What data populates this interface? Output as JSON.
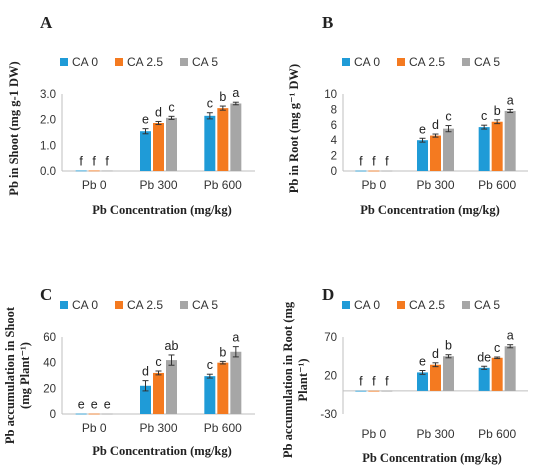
{
  "colors": {
    "CA 0": "#1f9bd7",
    "CA 2.5": "#f47a20",
    "CA 5": "#a6a6a6",
    "axis": "#bfbfbf",
    "text": "#333333"
  },
  "chart_data": [
    {
      "panel": "A",
      "type": "bar",
      "xlabel": "Pb Concentration (mg/kg)",
      "ylabel": "Pb in Shoot (mg g-1 DW)",
      "categories": [
        "Pb 0",
        "Pb 300",
        "Pb 600"
      ],
      "ylim": [
        0,
        3
      ],
      "yticks": [
        "0.0",
        "1.0",
        "2.0",
        "3.0"
      ],
      "legend": [
        "CA 0",
        "CA 2.5",
        "CA 5"
      ],
      "series": [
        {
          "name": "CA 0",
          "values": [
            0.02,
            1.55,
            2.15
          ],
          "errors": [
            0.0,
            0.1,
            0.12
          ],
          "labels": [
            "f",
            "e",
            "c"
          ]
        },
        {
          "name": "CA 2.5",
          "values": [
            0.02,
            1.87,
            2.45
          ],
          "errors": [
            0.0,
            0.06,
            0.08
          ],
          "labels": [
            "f",
            "d",
            "b"
          ]
        },
        {
          "name": "CA 5",
          "values": [
            0.02,
            2.07,
            2.63
          ],
          "errors": [
            0.0,
            0.06,
            0.05
          ],
          "labels": [
            "f",
            "c",
            "a"
          ]
        }
      ]
    },
    {
      "panel": "B",
      "type": "bar",
      "xlabel": "Pb Concentration (mg/kg)",
      "ylabel": "Pb in Root (mg g⁻¹ DW)",
      "categories": [
        "Pb 0",
        "Pb 300",
        "Pb 600"
      ],
      "ylim": [
        0,
        10
      ],
      "yticks": [
        "0",
        "2",
        "4",
        "6",
        "8",
        "10"
      ],
      "legend": [
        "CA 0",
        "CA 2.5",
        "CA 5"
      ],
      "series": [
        {
          "name": "CA 0",
          "values": [
            0.05,
            4.0,
            5.7
          ],
          "errors": [
            0.0,
            0.25,
            0.25
          ],
          "labels": [
            "f",
            "e",
            "c"
          ]
        },
        {
          "name": "CA 2.5",
          "values": [
            0.05,
            4.6,
            6.4
          ],
          "errors": [
            0.0,
            0.2,
            0.25
          ],
          "labels": [
            "f",
            "d",
            "b"
          ]
        },
        {
          "name": "CA 5",
          "values": [
            0.05,
            5.5,
            7.8
          ],
          "errors": [
            0.0,
            0.4,
            0.2
          ],
          "labels": [
            "f",
            "c",
            "a"
          ]
        }
      ]
    },
    {
      "panel": "C",
      "type": "bar",
      "xlabel": "Pb Concentration (mg/kg)",
      "ylabel_lines": [
        "Pb accumulation in Shoot",
        "(mg Plant⁻¹)"
      ],
      "categories": [
        "Pb 0",
        "Pb 300",
        "Pb 600"
      ],
      "ylim": [
        0,
        60
      ],
      "yticks": [
        "0",
        "20",
        "40",
        "60"
      ],
      "legend": [
        "CA 0",
        "CA 2.5",
        "CA 5"
      ],
      "series": [
        {
          "name": "CA 0",
          "values": [
            0.3,
            22,
            29.5
          ],
          "errors": [
            0.0,
            4,
            1.5
          ],
          "labels": [
            "e",
            "d",
            "c"
          ]
        },
        {
          "name": "CA 2.5",
          "values": [
            0.3,
            32,
            40
          ],
          "errors": [
            0.0,
            1.5,
            1
          ],
          "labels": [
            "e",
            "c",
            "b"
          ]
        },
        {
          "name": "CA 5",
          "values": [
            0.3,
            42,
            48.5
          ],
          "errors": [
            0.0,
            4,
            4
          ],
          "labels": [
            "e",
            "ab",
            "a"
          ]
        }
      ]
    },
    {
      "panel": "D",
      "type": "bar",
      "xlabel": "Pb Concentration (mg/kg)",
      "ylabel_lines": [
        "Pb accumulation in Root (mg",
        "Plant⁻¹)"
      ],
      "categories": [
        "Pb 0",
        "Pb 300",
        "Pb 600"
      ],
      "ylim": [
        -30,
        70
      ],
      "yticks": [
        "-30",
        "20",
        "70"
      ],
      "legend": [
        "CA 0",
        "CA 2.5",
        "CA 5"
      ],
      "series": [
        {
          "name": "CA 0",
          "values": [
            0.2,
            24,
            30
          ],
          "errors": [
            0.0,
            2.5,
            2
          ],
          "labels": [
            "f",
            "e",
            "de"
          ]
        },
        {
          "name": "CA 2.5",
          "values": [
            0.2,
            34,
            43
          ],
          "errors": [
            0.0,
            2.5,
            1
          ],
          "labels": [
            "f",
            "d",
            "c"
          ]
        },
        {
          "name": "CA 5",
          "values": [
            0.2,
            45,
            58
          ],
          "errors": [
            0.0,
            2,
            2
          ],
          "labels": [
            "f",
            "b",
            "a"
          ]
        }
      ]
    }
  ]
}
